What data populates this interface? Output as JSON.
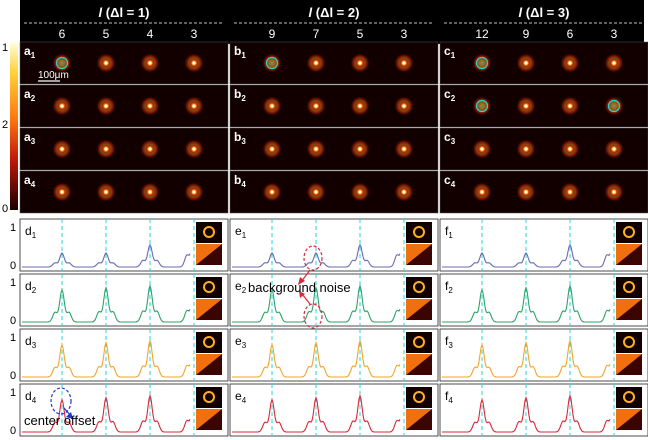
{
  "headers": [
    {
      "prefix": "l",
      "delta": "(Δl = 1)"
    },
    {
      "prefix": "l",
      "delta": "(Δl = 2)"
    },
    {
      "prefix": "l",
      "delta": "(Δl = 3)"
    }
  ],
  "orders": [
    [
      "6",
      "5",
      "4",
      "3"
    ],
    [
      "9",
      "7",
      "5",
      "3"
    ],
    [
      "12",
      "9",
      "6",
      "3"
    ]
  ],
  "panel_letters": [
    "a",
    "b",
    "c"
  ],
  "plot_letters": [
    "d",
    "e",
    "f"
  ],
  "row_indices": [
    "1",
    "2",
    "3",
    "4"
  ],
  "scale_bar": "100μm",
  "colorbar_ticks": {
    "top": "1",
    "lower": "2",
    "bottom": "0"
  },
  "y_ticks": {
    "one": "1",
    "zero": "0"
  },
  "annotations": {
    "background_noise": "background noise",
    "center_offset": "center offset"
  },
  "colors": {
    "row1": "#6b6bb5",
    "row2": "#2ea36a",
    "row3": "#f2a62a",
    "row4": "#d8283a",
    "guide": "#27d6d6",
    "red_arrow": "#d8283a",
    "blue_arrow": "#1d35d6"
  }
}
